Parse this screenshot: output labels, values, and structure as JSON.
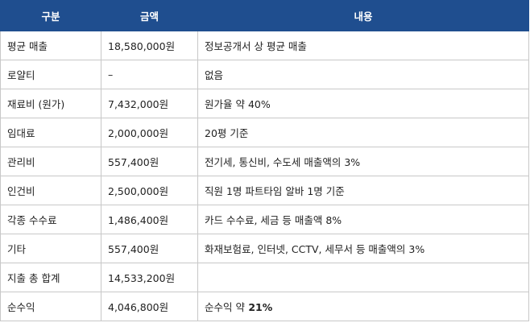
{
  "table": {
    "header": [
      "구분",
      "금액",
      "내용"
    ],
    "rows": [
      [
        "평균 매출",
        "18,580,000원",
        "정보공개서 상 평균 매출"
      ],
      [
        "로얄티",
        "–",
        "없음"
      ],
      [
        "재료비 (원가)",
        "7,432,000원",
        "원가율 약 40%"
      ],
      [
        "임대료",
        "2,000,000원",
        "20평 기준"
      ],
      [
        "관리비",
        "557,400원",
        "전기세, 통신비, 수도세 매출액의 3%"
      ],
      [
        "인건비",
        "2,500,000원",
        "직원 1명 파트타임 알바 1명 기준"
      ],
      [
        "각종 수수료",
        "1,486,400원",
        "카드 수수료, 세금 등 매출액 8%"
      ],
      [
        "기타",
        "557,400원",
        "화재보험료, 인터넷, CCTV, 세무서 등 매출액의 3%"
      ],
      [
        "지출 총 합계",
        "14,533,200원"
      ],
      [
        "순수익",
        "4,046,800원",
        {
          "text": "순수익 약",
          "bold": "21%"
        }
      ]
    ]
  }
}
